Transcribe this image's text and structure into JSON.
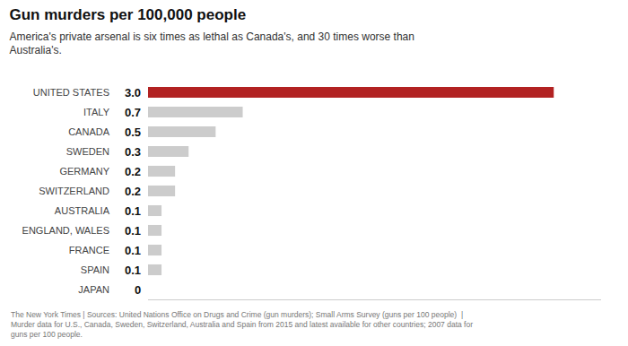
{
  "chart_data": {
    "type": "bar",
    "orientation": "horizontal",
    "title": "Gun murders per 100,000 people",
    "subtitle": "America's private arsenal is six times as lethal as Canada's, and 30 times worse than\nAustralia's.",
    "footnote": "The New York Times | Sources: United Nations Office on Drugs and Crime (gun murders); Small Arms Survey (guns per 100 people)  |\nMurder data for U.S., Canada, Sweden, Switzerland, Australia and Spain from 2015 and latest available for other countries; 2007 data for\nguns per 100 people.",
    "categories": [
      "UNITED STATES",
      "ITALY",
      "CANADA",
      "SWEDEN",
      "GERMANY",
      "SWITZERLAND",
      "AUSTRALIA",
      "ENGLAND, WALES",
      "FRANCE",
      "SPAIN",
      "JAPAN"
    ],
    "values": [
      3.0,
      0.7,
      0.5,
      0.3,
      0.2,
      0.2,
      0.1,
      0.1,
      0.1,
      0.1,
      0.0
    ],
    "value_labels": [
      "3.0",
      "0.7",
      "0.5",
      "0.3",
      "0.2",
      "0.2",
      "0.1",
      "0.1",
      "0.1",
      "0.1",
      "0"
    ],
    "colors": [
      "#b22222",
      "#cccccc",
      "#cccccc",
      "#cccccc",
      "#cccccc",
      "#cccccc",
      "#cccccc",
      "#cccccc",
      "#cccccc",
      "#cccccc",
      "#cccccc"
    ],
    "xlim": [
      0,
      3.35
    ],
    "data_labels": true,
    "tick_labels": "y",
    "grid": false
  }
}
